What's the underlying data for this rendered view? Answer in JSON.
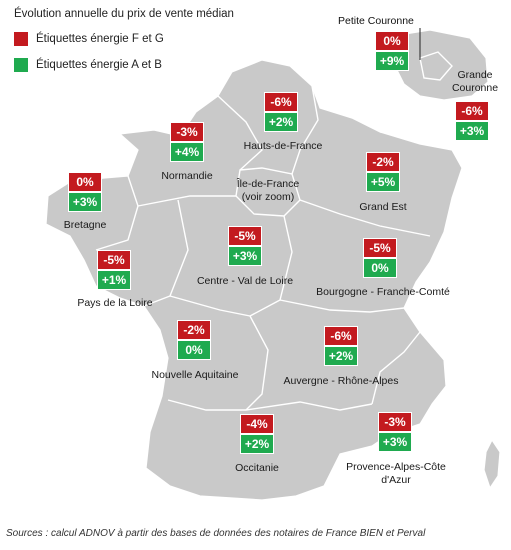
{
  "title": "Évolution annuelle du prix de vente médian",
  "legend": [
    {
      "label": "Étiquettes énergie F et G",
      "color": "#c31a1f"
    },
    {
      "label": "Étiquettes énergie A et B",
      "color": "#1faa4f"
    }
  ],
  "colors": {
    "map_fill": "#c9c9c9",
    "border": "#ffffff",
    "negative": "#c31a1f",
    "positive": "#1faa4f"
  },
  "regions": [
    {
      "id": "petite-couronne",
      "name": "Petite Couronne",
      "fg": "0%",
      "ab": "+9%"
    },
    {
      "id": "grande-couronne",
      "name": "Grande Couronne",
      "fg": "-6%",
      "ab": "+3%"
    },
    {
      "id": "hauts-de-france",
      "name": "Hauts-de-France",
      "fg": "-6%",
      "ab": "+2%"
    },
    {
      "id": "normandie",
      "name": "Normandie",
      "fg": "-3%",
      "ab": "+4%"
    },
    {
      "id": "bretagne",
      "name": "Bretagne",
      "fg": "0%",
      "ab": "+3%"
    },
    {
      "id": "grand-est",
      "name": "Grand Est",
      "fg": "-2%",
      "ab": "+5%"
    },
    {
      "id": "ile-de-france",
      "name": "Île-de-France (voir zoom)",
      "fg": "",
      "ab": ""
    },
    {
      "id": "centre-val-de-loire",
      "name": "Centre - Val de Loire",
      "fg": "-5%",
      "ab": "+3%"
    },
    {
      "id": "pays-de-la-loire",
      "name": "Pays de la Loire",
      "fg": "-5%",
      "ab": "+1%"
    },
    {
      "id": "bourgogne-franche-comte",
      "name": "Bourgogne - Franche-Comté",
      "fg": "-5%",
      "ab": "0%"
    },
    {
      "id": "nouvelle-aquitaine",
      "name": "Nouvelle Aquitaine",
      "fg": "-2%",
      "ab": "0%"
    },
    {
      "id": "auvergne-rhone-alpes",
      "name": "Auvergne - Rhône-Alpes",
      "fg": "-6%",
      "ab": "+2%"
    },
    {
      "id": "occitanie",
      "name": "Occitanie",
      "fg": "-4%",
      "ab": "+2%"
    },
    {
      "id": "paca",
      "name": "Provence-Alpes-Côte d'Azur",
      "fg": "-3%",
      "ab": "+3%"
    }
  ],
  "source": "Sources : calcul ADNOV à partir des bases de données des notaires de France BIEN et Perval"
}
